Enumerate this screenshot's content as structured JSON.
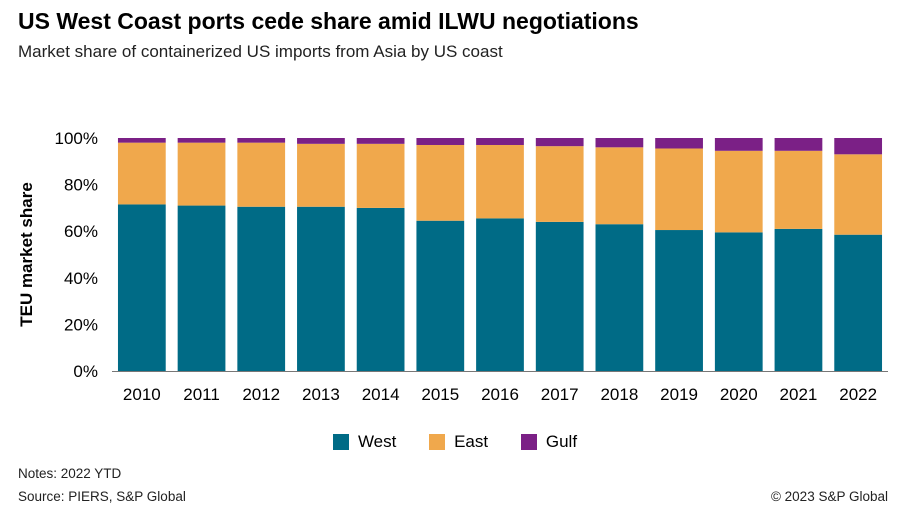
{
  "title": "US West Coast ports cede share amid ILWU negotiations",
  "subtitle": "Market share of containerized US imports from Asia by US coast",
  "notes": "Notes: 2022 YTD",
  "source": "Source: PIERS, S&P Global",
  "copyright": "© 2023 S&P Global",
  "colors": {
    "West": "#006b86",
    "East": "#f0a84c",
    "Gulf": "#7b2086",
    "text": "#000000",
    "axis": "#777777"
  },
  "chart_data": {
    "type": "bar",
    "stacked": true,
    "categories": [
      "2010",
      "2011",
      "2012",
      "2013",
      "2014",
      "2015",
      "2016",
      "2017",
      "2018",
      "2019",
      "2020",
      "2021",
      "2022"
    ],
    "series": [
      {
        "name": "West",
        "values": [
          71.5,
          71,
          70.5,
          70.5,
          70,
          64.5,
          65.5,
          64,
          63,
          60.5,
          59.5,
          61,
          58.5
        ]
      },
      {
        "name": "East",
        "values": [
          26.5,
          27,
          27.5,
          27,
          27.5,
          32.5,
          31.5,
          32.5,
          33,
          35,
          35,
          33.5,
          34.5
        ]
      },
      {
        "name": "Gulf",
        "values": [
          2,
          2,
          2,
          2.5,
          2.5,
          3,
          3,
          3.5,
          4,
          4.5,
          5.5,
          5.5,
          7
        ]
      }
    ],
    "ylabel": "TEU market share",
    "ylim": [
      0,
      100
    ],
    "yticks": [
      "0%",
      "20%",
      "40%",
      "60%",
      "80%",
      "100%"
    ],
    "legend": "bottom-center",
    "grid": false
  }
}
